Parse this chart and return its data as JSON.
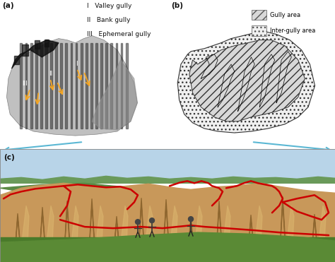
{
  "panel_a_label": "(a)",
  "panel_b_label": "(b)",
  "panel_c_label": "(c)",
  "legend_a": [
    {
      "roman": "I",
      "text": "Valley gully"
    },
    {
      "roman": "II",
      "text": "Bank gully"
    },
    {
      "roman": "III",
      "text": "Ephemeral gully"
    }
  ],
  "legend_b": [
    {
      "text": "Gully area"
    },
    {
      "text": "Inter-gully area"
    }
  ],
  "arrow_color": "#F5A623",
  "connector_color": "#5BB8D4",
  "red_line_color": "#CC0000",
  "label_fontsize": 7,
  "legend_fontsize": 6,
  "bg_white": "#ffffff",
  "terrain_light": "#c8c8c8",
  "terrain_dark": "#2a2a2a",
  "terrain_mid": "#888888",
  "sky_color": "#a8cce0",
  "hill_color": "#5a8a3a",
  "cliff_color": "#b89050",
  "cliff_shadow": "#7a5520",
  "grass_fg": "#4a7a30",
  "gully_dark": "#6a4010"
}
